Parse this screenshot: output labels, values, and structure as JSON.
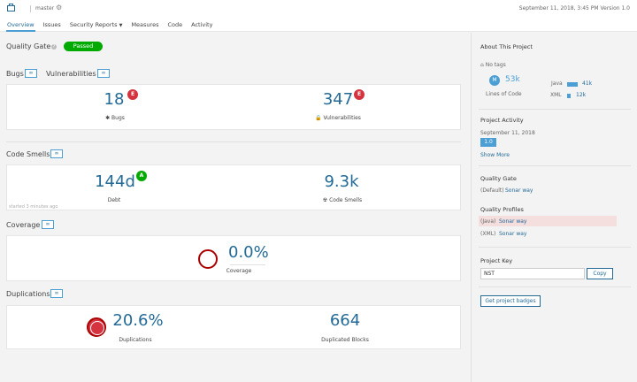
{
  "topbar": {
    "branch": "master",
    "date_version": "September 11, 2018, 3:45 PM  Version 1.0"
  },
  "nav": {
    "tabs": [
      "Overview",
      "Issues",
      "Security Reports",
      "Measures",
      "Code",
      "Activity"
    ]
  },
  "quality_gate": {
    "label": "Quality Gate",
    "status": "Passed"
  },
  "bugs_vulns": {
    "bugs_title": "Bugs",
    "vulns_title": "Vulnerabilities",
    "bugs_value": "18",
    "bugs_rating": "E",
    "bugs_label": "Bugs",
    "vulns_value": "347",
    "vulns_rating": "E",
    "vulns_label": "Vulnerabilities"
  },
  "code_smells": {
    "title": "Code Smells",
    "debt_value": "144d",
    "debt_rating": "A",
    "debt_label": "Debt",
    "smells_value": "9.3k",
    "smells_label": "Code Smells",
    "started": "started 3 minutes ago"
  },
  "coverage": {
    "title": "Coverage",
    "value": "0.0%",
    "label": "Coverage"
  },
  "duplications": {
    "title": "Duplications",
    "dup_value": "20.6%",
    "dup_label": "Duplications",
    "blocks_value": "664",
    "blocks_label": "Duplicated Blocks"
  },
  "sidebar": {
    "about_title": "About This Project",
    "no_tags": "No tags",
    "avatar_letter": "M",
    "loc_value": "53k",
    "loc_label": "Lines of Code",
    "languages": [
      {
        "name": "Java",
        "value": "41k",
        "share": 0.77
      },
      {
        "name": "XML",
        "value": "12k",
        "share": 0.23
      }
    ],
    "activity_title": "Project Activity",
    "activity_date": "September 11, 2018",
    "activity_version": "1.0",
    "show_more": "Show More",
    "qg_title": "Quality Gate",
    "qg_default": "(Default)",
    "qg_name": "Sonar way",
    "profiles_title": "Quality Profiles",
    "profiles": [
      {
        "lang": "(Java)",
        "name": "Sonar way"
      },
      {
        "lang": "(XML)",
        "name": "Sonar way"
      }
    ],
    "key_title": "Project Key",
    "key_value": "NST",
    "copy_label": "Copy",
    "badges_label": "Get project badges"
  },
  "colors": {
    "accent": "#236a97",
    "passed": "#00aa00",
    "rating_e": "#d4333f",
    "rating_a": "#00aa00"
  }
}
